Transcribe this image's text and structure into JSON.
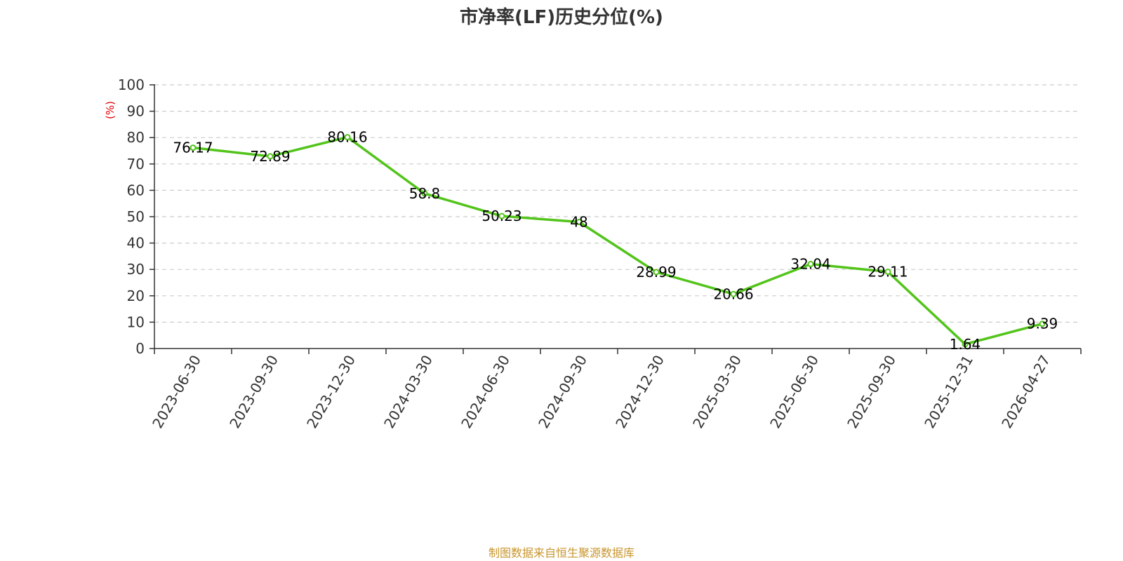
{
  "chart_data": {
    "type": "line",
    "title": "市净率(LF)历史分位(%)",
    "xlabel": "",
    "ylabel": "(%)",
    "x": [
      "2023-06-30",
      "2023-09-30",
      "2023-12-30",
      "2024-03-30",
      "2024-06-30",
      "2024-09-30",
      "2024-12-30",
      "2025-03-30",
      "2025-06-30",
      "2025-09-30",
      "2025-12-31",
      "2026-04-27"
    ],
    "series": [
      {
        "values": [
          76.17,
          72.89,
          80.16,
          58.8,
          50.23,
          48,
          28.99,
          20.66,
          32.04,
          29.11,
          1.64,
          9.39
        ],
        "labels": [
          "76.17",
          "72.89",
          "80.16",
          "58.8",
          "50.23",
          "48",
          "28.99",
          "20.66",
          "32.04",
          "29.11",
          "1.64",
          "9.39"
        ]
      }
    ],
    "ylim": [
      0,
      100
    ],
    "yticks": [
      "0",
      "10",
      "20",
      "30",
      "40",
      "50",
      "60",
      "70",
      "80",
      "90",
      "100"
    ],
    "grid": true,
    "legend": "none"
  },
  "source": "制图数据来自恒生聚源数据库",
  "colors": {
    "line": "#52c41a",
    "axis": "#333333",
    "grid": "#cccccc",
    "ylabel": "#e00000",
    "source": "#c8952c"
  }
}
